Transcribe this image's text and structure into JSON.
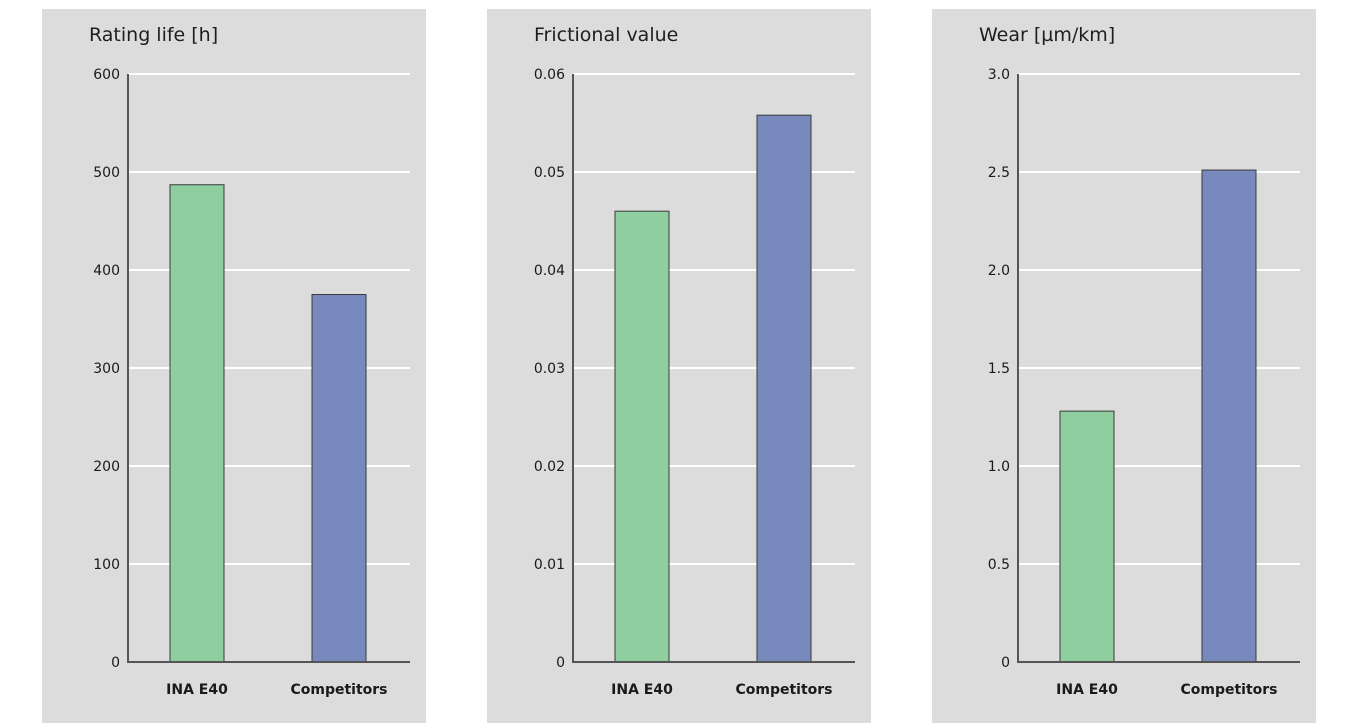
{
  "chart_data": [
    {
      "type": "bar",
      "title": "Rating life [h]",
      "categories": [
        "INA E40",
        "Competitors"
      ],
      "values": [
        487,
        375
      ],
      "ylim": [
        0,
        600
      ],
      "yticks": [
        "0",
        "100",
        "200",
        "300",
        "400",
        "500",
        "600"
      ],
      "grid": true
    },
    {
      "type": "bar",
      "title": "Frictional value",
      "categories": [
        "INA E40",
        "Competitors"
      ],
      "values": [
        0.046,
        0.0558
      ],
      "ylim": [
        0,
        0.06
      ],
      "yticks": [
        "0",
        "0.01",
        "0.02",
        "0.03",
        "0.04",
        "0.05",
        "0.06"
      ],
      "grid": true
    },
    {
      "type": "bar",
      "title": "Wear [µm/km]",
      "categories": [
        "INA E40",
        "Competitors"
      ],
      "values": [
        1.28,
        2.51
      ],
      "ylim": [
        0,
        3.0
      ],
      "yticks": [
        "0",
        "0.5",
        "1.0",
        "1.5",
        "2.0",
        "2.5",
        "3.0"
      ],
      "grid": true
    }
  ],
  "colors": {
    "panel": "#dcdcdc",
    "grid": "#ffffff",
    "bar_ina": "#8fce9e",
    "bar_competitors": "#7889bd"
  }
}
